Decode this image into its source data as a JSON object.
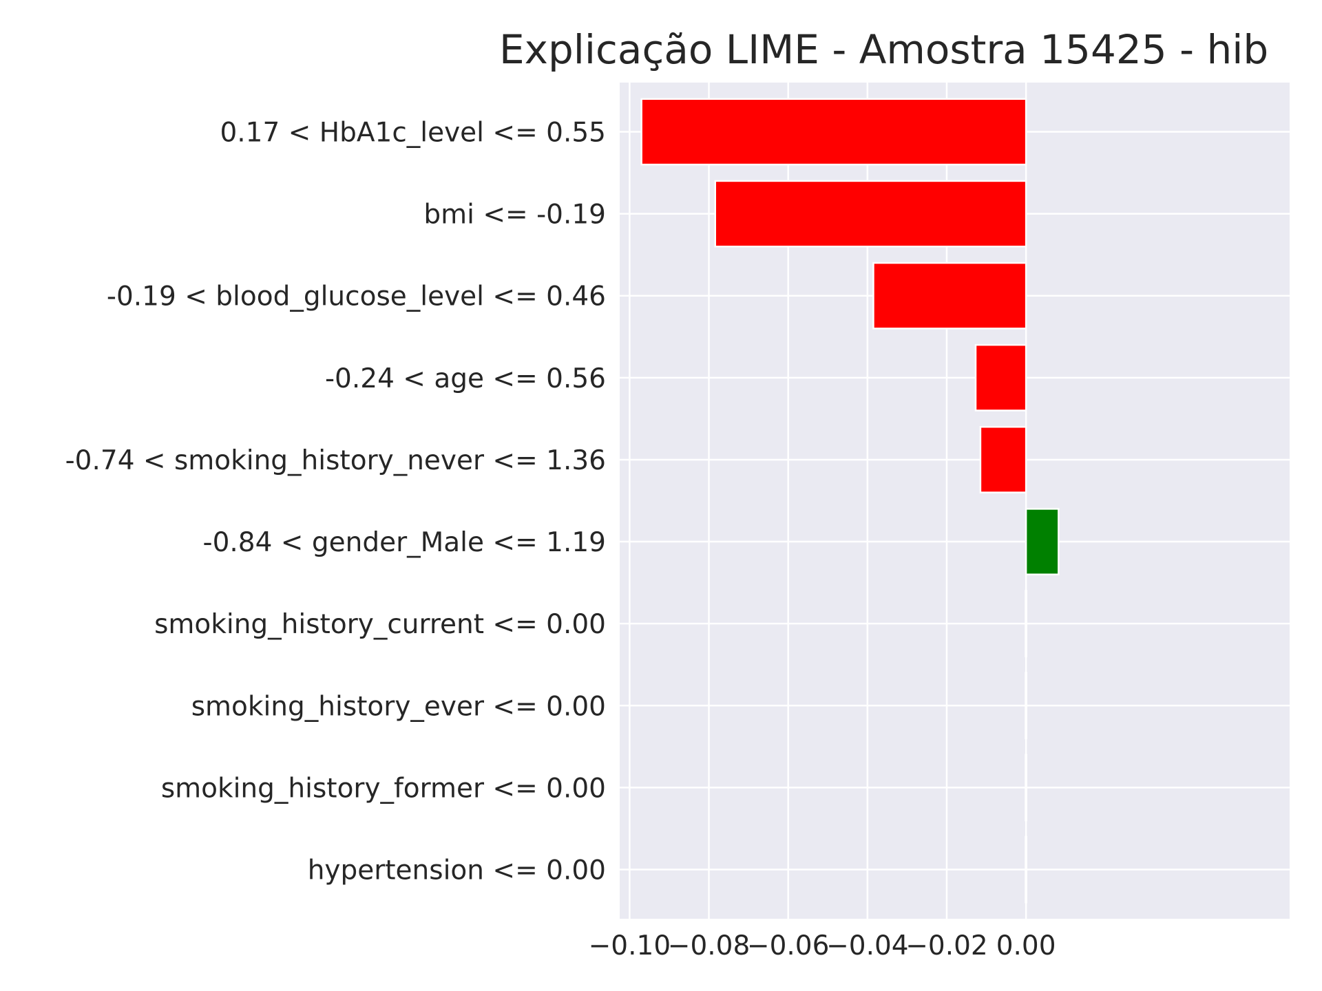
{
  "chart_data": {
    "type": "bar",
    "orientation": "horizontal",
    "title": "Explicação LIME - Amostra 15425 - hib",
    "xlabel": "",
    "ylabel": "",
    "xlim": [
      -0.1025,
      0.0665
    ],
    "x_ticks": [
      -0.1,
      -0.08,
      -0.06,
      -0.04,
      -0.02,
      0.0
    ],
    "x_tick_labels": [
      "−0.10",
      "−0.08",
      "−0.06",
      "−0.04",
      "−0.02",
      "0.00"
    ],
    "grid": true,
    "categories": [
      "0.17 < HbA1c_level <= 0.55",
      "bmi <= -0.19",
      "-0.19 < blood_glucose_level <= 0.46",
      "-0.24 < age <= 0.56",
      "-0.74 < smoking_history_never <= 1.36",
      "-0.84 < gender_Male <= 1.19",
      "smoking_history_current <= 0.00",
      "smoking_history_ever <= 0.00",
      "smoking_history_former <= 0.00",
      "hypertension <= 0.00"
    ],
    "values": [
      -0.097,
      -0.0784,
      -0.0385,
      -0.0127,
      -0.0115,
      0.0082,
      0.0,
      0.0,
      0.0,
      0.0
    ],
    "colors": {
      "negative": "#ff0000",
      "positive": "#008000",
      "plot_background": "#eaeaf2",
      "grid": "#ffffff"
    }
  }
}
